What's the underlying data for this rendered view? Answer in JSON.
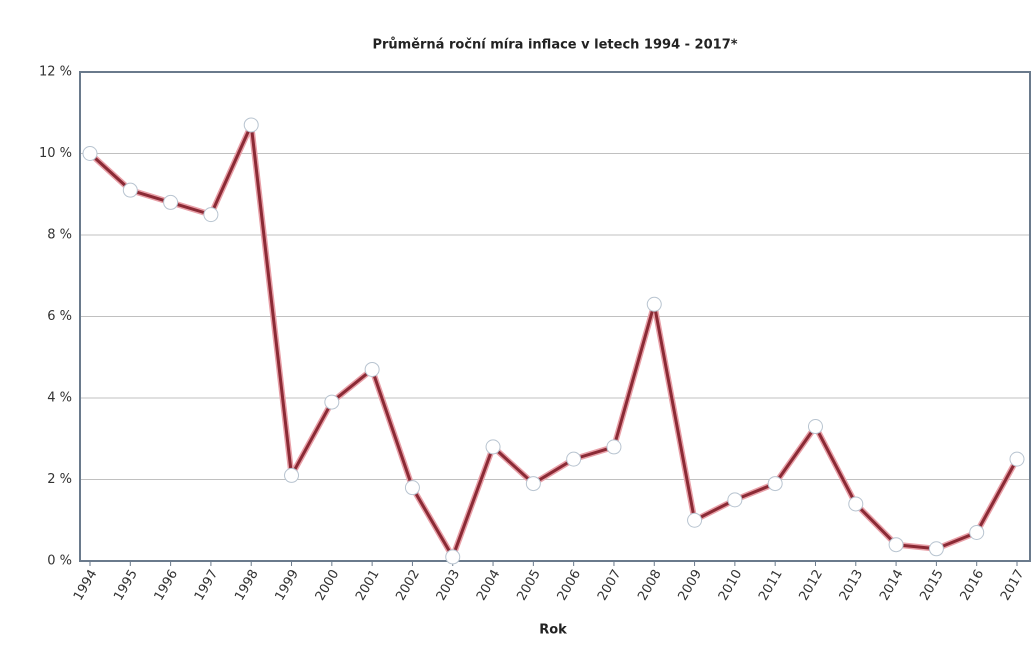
{
  "chart_data": {
    "type": "line",
    "title": "Průměrná roční míra inflace v letech 1994 - 2017*",
    "x_label": "Rok",
    "categories": [
      "1994",
      "1995",
      "1996",
      "1997",
      "1998",
      "1999",
      "2000",
      "2001",
      "2002",
      "2003",
      "2004",
      "2005",
      "2006",
      "2007",
      "2008",
      "2009",
      "2010",
      "2011",
      "2012",
      "2013",
      "2014",
      "2015",
      "2016",
      "2017"
    ],
    "series": [
      {
        "name": "Průměrná roční míra inflace",
        "color": "#8b2a35",
        "values": [
          10.0,
          9.1,
          8.8,
          8.5,
          10.7,
          2.1,
          3.9,
          4.7,
          1.8,
          0.1,
          2.8,
          1.9,
          2.5,
          2.8,
          6.3,
          1.0,
          1.5,
          1.9,
          3.3,
          1.4,
          0.4,
          0.3,
          0.7,
          2.5
        ]
      }
    ],
    "ylim": [
      0,
      12
    ],
    "yticks": [
      {
        "value": 0,
        "label": "0 %"
      },
      {
        "value": 2,
        "label": "2 %"
      },
      {
        "value": 4,
        "label": "4 %"
      },
      {
        "value": 6,
        "label": "6 %"
      },
      {
        "value": 8,
        "label": "8 %"
      },
      {
        "value": 10,
        "label": "10 %"
      },
      {
        "value": 12,
        "label": "12 %"
      }
    ],
    "grid": true
  }
}
